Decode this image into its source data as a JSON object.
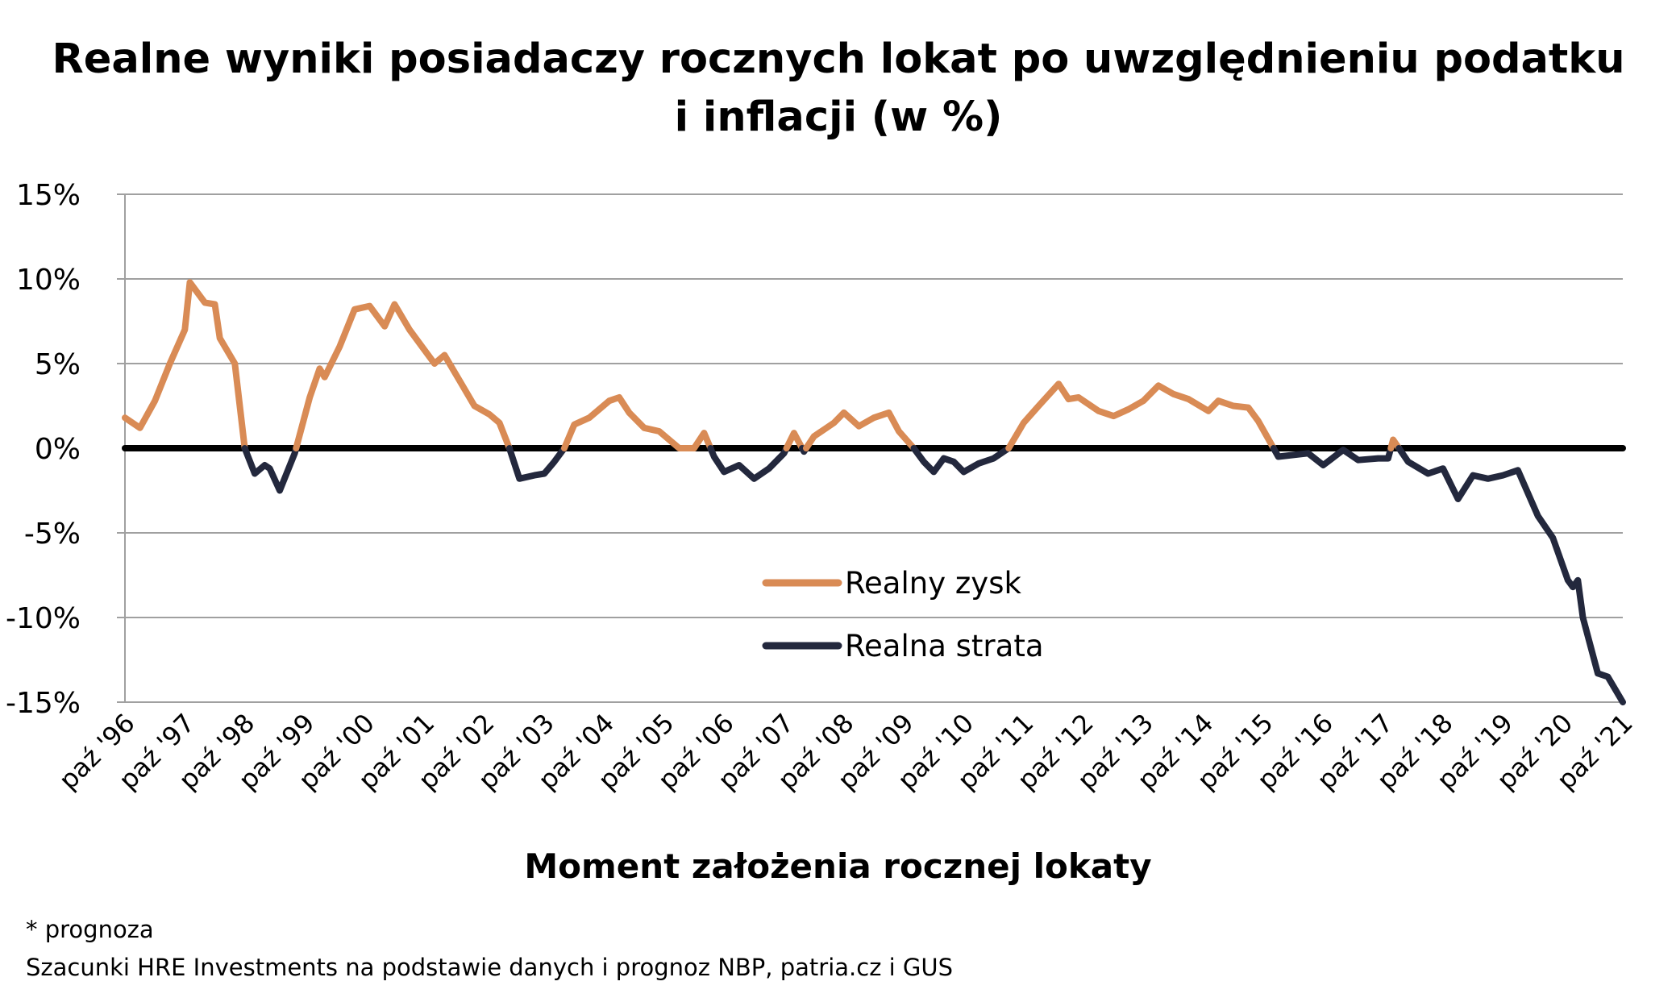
{
  "chart_data": {
    "type": "line",
    "title": "Realne wyniki posiadaczy rocznych lokat po uwzględnieniu podatku i inflacji (w %)",
    "xlabel": "Moment założenia rocznej lokaty",
    "ylabel": "",
    "ylim": [
      -15,
      15
    ],
    "yticks": [
      15,
      10,
      5,
      0,
      -5,
      -10,
      -15
    ],
    "ytick_labels": [
      "15%",
      "10%",
      "5%",
      "0%",
      "-5%",
      "-10%",
      "-15%"
    ],
    "xlim": [
      "1996-10",
      "2021-10"
    ],
    "xtick_labels": [
      "paź '96",
      "paź '97",
      "paź '98",
      "paź '99",
      "paź '00",
      "paź '01",
      "paź '02",
      "paź '03",
      "paź '04",
      "paź '05",
      "paź '06",
      "paź '07",
      "paź '08",
      "paź '09",
      "paź '10",
      "paź '11",
      "paź '12",
      "paź '13",
      "paź '14",
      "paź '15",
      "paź '16",
      "paź '17",
      "paź '18",
      "paź '19",
      "paź '20",
      "paź '21"
    ],
    "grid": true,
    "legend_position": "center",
    "zero_line_color": "#000000",
    "series": [
      {
        "name": "Realny zysk",
        "color": "#d98b55",
        "rule": "values above 0%"
      },
      {
        "name": "Realna strata",
        "color": "#23283d",
        "rule": "values below 0%"
      }
    ],
    "x": [
      "1996-10",
      "1997-01",
      "1997-04",
      "1997-07",
      "1997-10",
      "1997-11",
      "1998-02",
      "1998-04",
      "1998-05",
      "1998-08",
      "1998-10",
      "1998-12",
      "1999-02",
      "1999-03",
      "1999-05",
      "1999-08",
      "1999-11",
      "2000-01",
      "2000-02",
      "2000-05",
      "2000-08",
      "2000-11",
      "2001-02",
      "2001-04",
      "2001-07",
      "2001-10",
      "2001-12",
      "2002-02",
      "2002-05",
      "2002-08",
      "2002-11",
      "2003-01",
      "2003-03",
      "2003-05",
      "2003-08",
      "2003-10",
      "2003-12",
      "2004-02",
      "2004-04",
      "2004-07",
      "2004-11",
      "2005-01",
      "2005-03",
      "2005-06",
      "2005-09",
      "2006-01",
      "2006-04",
      "2006-06",
      "2006-08",
      "2006-10",
      "2007-01",
      "2007-04",
      "2007-07",
      "2007-10",
      "2007-12",
      "2008-02",
      "2008-04",
      "2008-08",
      "2008-10",
      "2009-01",
      "2009-04",
      "2009-07",
      "2009-09",
      "2009-12",
      "2010-02",
      "2010-04",
      "2010-06",
      "2010-08",
      "2010-10",
      "2011-01",
      "2011-04",
      "2011-07",
      "2011-10",
      "2012-01",
      "2012-05",
      "2012-07",
      "2012-09",
      "2013-01",
      "2013-04",
      "2013-07",
      "2013-10",
      "2014-01",
      "2014-04",
      "2014-07",
      "2014-11",
      "2015-01",
      "2015-04",
      "2015-07",
      "2015-09",
      "2016-01",
      "2016-04",
      "2016-07",
      "2016-10",
      "2017-02",
      "2017-05",
      "2017-09",
      "2017-11",
      "2017-12",
      "2018-03",
      "2018-07",
      "2018-10",
      "2019-01",
      "2019-04",
      "2019-07",
      "2019-10",
      "2020-01",
      "2020-05",
      "2020-08",
      "2020-11",
      "2020-12",
      "2021-01",
      "2021-02",
      "2021-05",
      "2021-07",
      "2021-10"
    ],
    "y": [
      1.8,
      1.2,
      2.8,
      5.0,
      7.0,
      9.8,
      8.6,
      8.5,
      6.5,
      5.0,
      0.0,
      -1.5,
      -1.0,
      -1.2,
      -2.5,
      -0.3,
      3.0,
      4.7,
      4.2,
      6.0,
      8.2,
      8.4,
      7.2,
      8.5,
      7.0,
      5.8,
      5.0,
      5.5,
      4.0,
      2.5,
      2.0,
      1.5,
      0.0,
      -1.8,
      -1.6,
      -1.5,
      -0.8,
      0.0,
      1.4,
      1.8,
      2.8,
      3.0,
      2.1,
      1.2,
      1.0,
      0.0,
      0.0,
      0.9,
      -0.5,
      -1.4,
      -1.0,
      -1.8,
      -1.2,
      -0.3,
      0.9,
      -0.2,
      0.7,
      1.5,
      2.1,
      1.3,
      1.8,
      2.1,
      1.0,
      0.0,
      -0.8,
      -1.4,
      -0.6,
      -0.8,
      -1.4,
      -0.9,
      -0.6,
      0.0,
      1.5,
      2.5,
      3.8,
      2.9,
      3.0,
      2.2,
      1.9,
      2.3,
      2.8,
      3.7,
      3.2,
      2.9,
      2.2,
      2.8,
      2.5,
      2.4,
      1.6,
      -0.5,
      -0.4,
      -0.3,
      -1.0,
      -0.1,
      -0.7,
      -0.6,
      -0.6,
      0.5,
      -0.8,
      -1.5,
      -1.2,
      -3.0,
      -1.6,
      -1.8,
      -1.6,
      -1.3,
      -4.0,
      -5.3,
      -7.8,
      -8.2,
      -7.8,
      -10.0,
      -13.3,
      -13.5,
      -15.0
    ]
  },
  "footnotes": {
    "forecast_note": "* prognoza",
    "source": "Szacunki HRE Investments na podstawie danych i prognoz NBP,  patria.cz  i GUS"
  }
}
